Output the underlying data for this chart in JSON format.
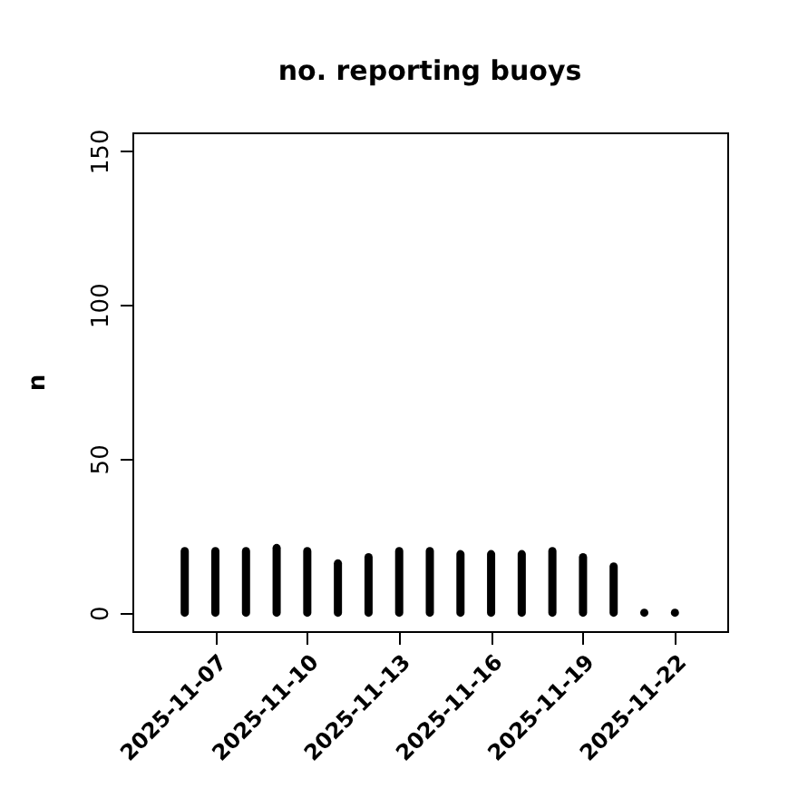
{
  "chart_data": {
    "type": "bar",
    "title": "no. reporting buoys",
    "ylabel": "n",
    "x": [
      "2025-11-06",
      "2025-11-07",
      "2025-11-08",
      "2025-11-09",
      "2025-11-10",
      "2025-11-11",
      "2025-11-12",
      "2025-11-13",
      "2025-11-14",
      "2025-11-15",
      "2025-11-16",
      "2025-11-17",
      "2025-11-18",
      "2025-11-19",
      "2025-11-20",
      "2025-11-21",
      "2025-11-22"
    ],
    "values": [
      20,
      20,
      20,
      21,
      20,
      16,
      18,
      20,
      20,
      19,
      19,
      19,
      20,
      18,
      15,
      0,
      0
    ],
    "color": "#000000",
    "xlim": [
      "2025-11-04T07:00",
      "2025-11-23T17:00"
    ],
    "xticks": [
      "2025-11-07",
      "2025-11-10",
      "2025-11-13",
      "2025-11-16",
      "2025-11-19",
      "2025-11-22"
    ],
    "ylim": [
      -6,
      156
    ],
    "yticks": [
      0,
      50,
      100,
      150
    ],
    "grid": false
  }
}
